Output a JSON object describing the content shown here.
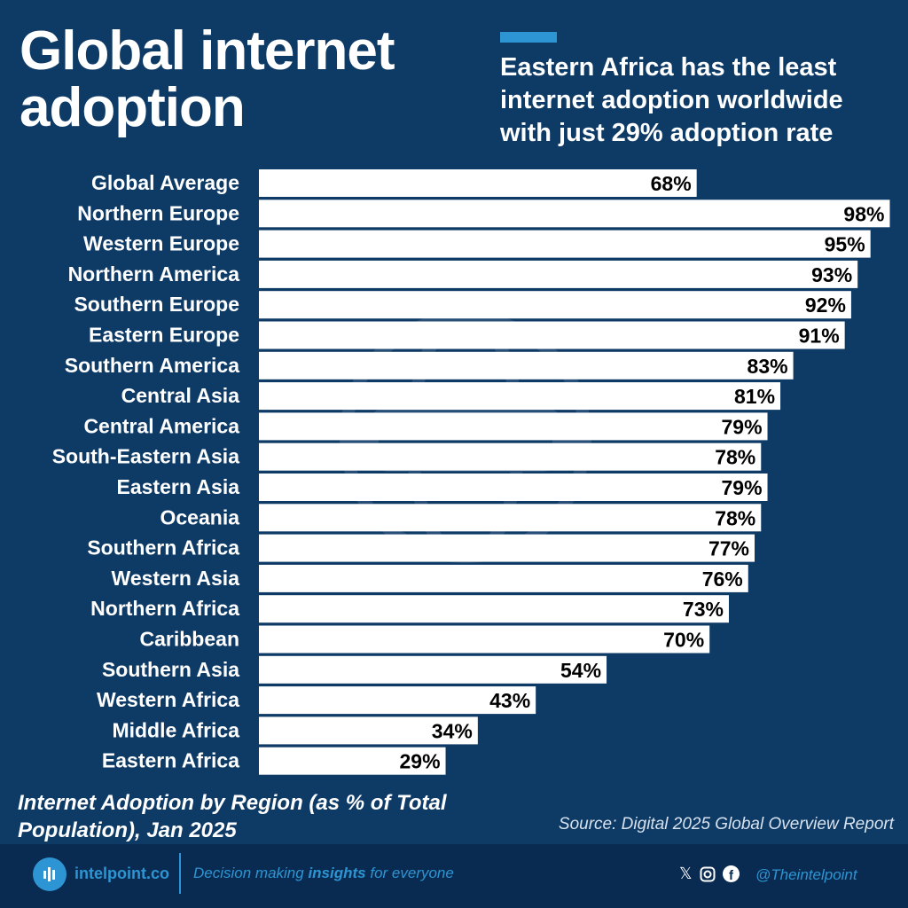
{
  "header": {
    "title_line1": "Global internet",
    "title_line2": "adoption",
    "subtitle": "Eastern Africa has the least internet adoption worldwide with just 29% adoption rate"
  },
  "chart_data": {
    "type": "bar",
    "orientation": "horizontal",
    "categories": [
      "Global Average",
      "Northern Europe",
      "Western Europe",
      "Northern America",
      "Southern Europe",
      "Eastern Europe",
      "Southern America",
      "Central Asia",
      "Central America",
      "South-Eastern Asia",
      "Eastern Asia",
      "Oceania",
      "Southern Africa",
      "Western Asia",
      "Northern Africa",
      "Caribbean",
      "Southern Asia",
      "Western Africa",
      "Middle Africa",
      "Eastern Africa"
    ],
    "values": [
      68,
      98,
      95,
      93,
      92,
      91,
      83,
      81,
      79,
      78,
      79,
      78,
      77,
      76,
      73,
      70,
      54,
      43,
      34,
      29
    ],
    "value_suffix": "%",
    "xlim": [
      0,
      100
    ],
    "grid": false,
    "bar_color": "#ffffff",
    "background": "#0e3a66",
    "caption": "Internet Adoption by Region (as % of Total Population), Jan 2025"
  },
  "source": "Source: Digital 2025 Global Overview Report",
  "footer": {
    "brand": "intelpoint.co",
    "tagline_pre": "Decision making ",
    "tagline_bold": "insights",
    "tagline_post": " for everyone",
    "handle": "@Theintelpoint",
    "icons": [
      "x-icon",
      "instagram-icon",
      "facebook-icon"
    ]
  }
}
